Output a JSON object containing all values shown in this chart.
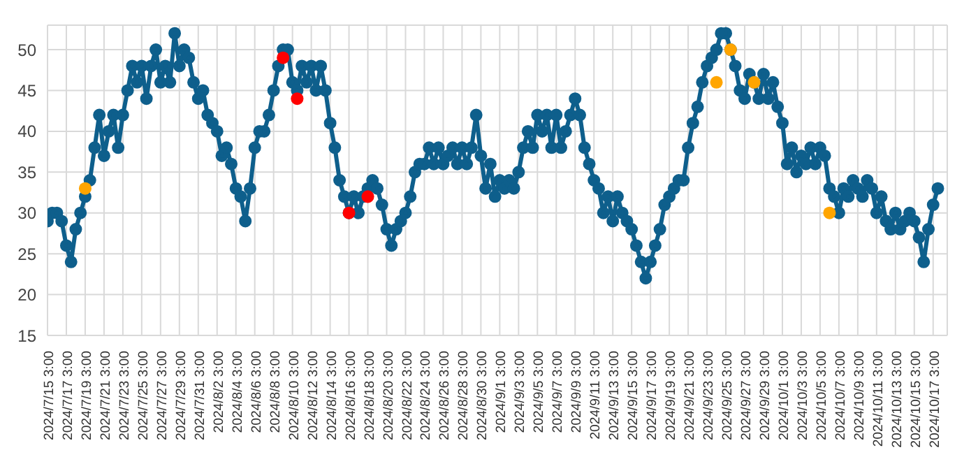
{
  "chart_data": {
    "type": "line",
    "categories": [
      "2024/7/15 3:00",
      null,
      null,
      null,
      "2024/7/17 3:00",
      null,
      null,
      null,
      "2024/7/19 3:00",
      null,
      null,
      null,
      "2024/7/21 3:00",
      null,
      null,
      null,
      "2024/7/23 3:00",
      null,
      null,
      null,
      "2024/7/25 3:00",
      null,
      null,
      null,
      "2024/7/27 3:00",
      null,
      null,
      null,
      "2024/7/29 3:00",
      null,
      null,
      null,
      "2024/7/31 3:00",
      null,
      null,
      null,
      "2024/8/2 3:00",
      null,
      null,
      null,
      "2024/8/4 3:00",
      null,
      null,
      null,
      "2024/8/6 3:00",
      null,
      null,
      null,
      "2024/8/8 3:00",
      null,
      null,
      null,
      "2024/8/10 3:00",
      null,
      null,
      null,
      "2024/8/12 3:00",
      null,
      null,
      null,
      "2024/8/14 3:00",
      null,
      null,
      null,
      "2024/8/16 3:00",
      null,
      null,
      null,
      "2024/8/18 3:00",
      null,
      null,
      null,
      "2024/8/20 3:00",
      null,
      null,
      null,
      "2024/8/22 3:00",
      null,
      null,
      null,
      "2024/8/24 3:00",
      null,
      null,
      null,
      "2024/8/26 3:00",
      null,
      null,
      null,
      "2024/8/28 3:00",
      null,
      null,
      null,
      "2024/8/30 3:00",
      null,
      null,
      null,
      "2024/9/1 3:00",
      null,
      null,
      null,
      "2024/9/3 3:00",
      null,
      null,
      null,
      "2024/9/5 3:00",
      null,
      null,
      null,
      "2024/9/7 3:00",
      null,
      null,
      null,
      "2024/9/9 3:00",
      null,
      null,
      null,
      "2024/9/11 3:00",
      null,
      null,
      null,
      "2024/9/13 3:00",
      null,
      null,
      null,
      "2024/9/15 3:00",
      null,
      null,
      null,
      "2024/9/17 3:00",
      null,
      null,
      null,
      "2024/9/19 3:00",
      null,
      null,
      null,
      "2024/9/21 3:00",
      null,
      null,
      null,
      "2024/9/23 3:00",
      null,
      null,
      null,
      "2024/9/25 3:00",
      null,
      null,
      null,
      "2024/9/27 3:00",
      null,
      null,
      null,
      "2024/9/29 3:00",
      null,
      null,
      null,
      "2024/10/1 3:00",
      null,
      null,
      null,
      "2024/10/3 3:00",
      null,
      null,
      null,
      "2024/10/5 3:00",
      null,
      null,
      null,
      "2024/10/7 3:00",
      null,
      null,
      null,
      "2024/10/9 3:00",
      null,
      null,
      null,
      "2024/10/11 3:00",
      null,
      null,
      null,
      "2024/10/13 3:00",
      null,
      null,
      null,
      "2024/10/15 3:00",
      null,
      null,
      null,
      "2024/10/17 3:00",
      null
    ],
    "series": [
      {
        "color": "#0e5f8c",
        "values": [
          29,
          30,
          30,
          29,
          26,
          24,
          28,
          30,
          32,
          34,
          38,
          42,
          37,
          40,
          42,
          38,
          42,
          45,
          48,
          46,
          48,
          44,
          48,
          50,
          46,
          48,
          46,
          52,
          48,
          50,
          49,
          46,
          44,
          45,
          42,
          41,
          40,
          37,
          38,
          36,
          33,
          32,
          29,
          33,
          38,
          40,
          40,
          42,
          45,
          48,
          50,
          50,
          46,
          45,
          48,
          46,
          48,
          45,
          48,
          45,
          41,
          38,
          34,
          32,
          30,
          32,
          30,
          32,
          33,
          34,
          33,
          31,
          28,
          26,
          28,
          29,
          30,
          32,
          35,
          36,
          36,
          38,
          36,
          38,
          36,
          37,
          38,
          36,
          38,
          36,
          38,
          42,
          37,
          33,
          36,
          32,
          34,
          33,
          34,
          33,
          35,
          38,
          40,
          38,
          42,
          40,
          42,
          38,
          42,
          38,
          40,
          42,
          44,
          42,
          38,
          36,
          34,
          33,
          30,
          32,
          29,
          32,
          30,
          29,
          28,
          26,
          24,
          22,
          24,
          26,
          28,
          31,
          32,
          33,
          34,
          34,
          38,
          41,
          43,
          46,
          48,
          49,
          50,
          52,
          52,
          50,
          48,
          45,
          44,
          47,
          46,
          44,
          47,
          44,
          46,
          43,
          41,
          36,
          38,
          35,
          37,
          36,
          38,
          36,
          38,
          37,
          33,
          32,
          30,
          33,
          32,
          34,
          33,
          32,
          34,
          33,
          30,
          32,
          29,
          28,
          30,
          28,
          29,
          30,
          29,
          27,
          24,
          28,
          31,
          33
        ]
      },
      {
        "type": "scatter",
        "color": "#ffa500",
        "values": [
          null,
          null,
          null,
          null,
          null,
          null,
          null,
          null,
          33,
          null,
          null,
          null,
          null,
          null,
          null,
          null,
          null,
          null,
          null,
          null,
          null,
          null,
          null,
          null,
          null,
          null,
          null,
          null,
          null,
          null,
          null,
          null,
          null,
          null,
          null,
          null,
          null,
          null,
          null,
          null,
          null,
          null,
          null,
          null,
          null,
          null,
          null,
          null,
          null,
          null,
          null,
          null,
          null,
          null,
          null,
          null,
          null,
          null,
          null,
          null,
          null,
          null,
          null,
          null,
          null,
          null,
          null,
          null,
          null,
          null,
          null,
          null,
          null,
          null,
          null,
          null,
          null,
          null,
          null,
          null,
          null,
          null,
          null,
          null,
          null,
          null,
          null,
          null,
          null,
          null,
          null,
          null,
          null,
          null,
          null,
          null,
          null,
          null,
          null,
          null,
          null,
          null,
          null,
          null,
          null,
          null,
          null,
          null,
          null,
          null,
          null,
          null,
          null,
          null,
          null,
          null,
          null,
          null,
          null,
          null,
          null,
          null,
          null,
          null,
          null,
          null,
          null,
          null,
          null,
          null,
          null,
          null,
          null,
          null,
          null,
          null,
          null,
          null,
          null,
          null,
          null,
          null,
          46,
          null,
          null,
          50,
          null,
          null,
          null,
          null,
          46,
          null,
          null,
          null,
          null,
          null,
          null,
          null,
          null,
          null,
          null,
          null,
          null,
          null,
          null,
          null,
          30,
          null,
          null,
          null,
          null,
          null,
          null,
          null,
          null,
          null,
          null,
          null,
          null,
          null,
          null,
          null,
          null,
          null,
          null,
          null,
          null,
          null,
          null,
          null
        ]
      },
      {
        "type": "scatter",
        "color": "#ff0000",
        "values": [
          null,
          null,
          null,
          null,
          null,
          null,
          null,
          null,
          null,
          null,
          null,
          null,
          null,
          null,
          null,
          null,
          null,
          null,
          null,
          null,
          null,
          null,
          null,
          null,
          null,
          null,
          null,
          null,
          null,
          null,
          null,
          null,
          null,
          null,
          null,
          null,
          null,
          null,
          null,
          null,
          null,
          null,
          null,
          null,
          null,
          null,
          null,
          null,
          null,
          null,
          49,
          null,
          null,
          44,
          null,
          null,
          null,
          null,
          null,
          null,
          null,
          null,
          null,
          null,
          30,
          null,
          null,
          null,
          32,
          null,
          null,
          null,
          null,
          null,
          null,
          null,
          null,
          null,
          null,
          null,
          null,
          null,
          null,
          null,
          null,
          null,
          null,
          null,
          null,
          null,
          null,
          null,
          null,
          null,
          null,
          null,
          null,
          null,
          null,
          null,
          null,
          null,
          null,
          null,
          null,
          null,
          null,
          null,
          null,
          null,
          null,
          null,
          null,
          null,
          null,
          null,
          null,
          null,
          null,
          null,
          null,
          null,
          null,
          null,
          null,
          null,
          null,
          null,
          null,
          null,
          null,
          null,
          null,
          null,
          null,
          null,
          null,
          null,
          null,
          null,
          null,
          null,
          null,
          null,
          null,
          null,
          null,
          null,
          null,
          null,
          null,
          null,
          null,
          null,
          null,
          null,
          null,
          null,
          null,
          null,
          null,
          null,
          null,
          null,
          null,
          null,
          null,
          null,
          null,
          null,
          null,
          null,
          null,
          null,
          null,
          null,
          null,
          null,
          null,
          null,
          null,
          null,
          null,
          null,
          null,
          null,
          null,
          null,
          null,
          null
        ]
      }
    ],
    "ylim": [
      15,
      53
    ],
    "yticks": [
      15,
      20,
      25,
      30,
      35,
      40,
      45,
      50
    ],
    "grid": true,
    "marker": "circle",
    "legend": false
  }
}
